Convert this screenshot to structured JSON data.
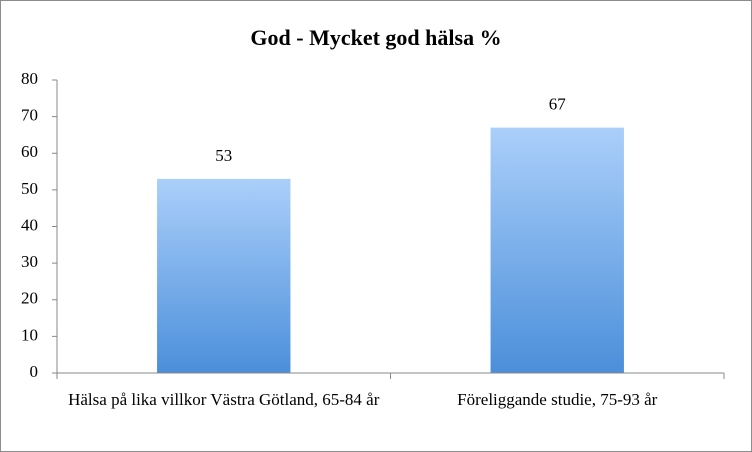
{
  "chart_data": {
    "type": "bar",
    "title": "God - Mycket god hälsa %",
    "categories": [
      "Hälsa på lika villkor Västra Götland, 65-84 år",
      "Föreliggande studie, 75-93 år"
    ],
    "values": [
      53,
      67
    ],
    "gradient": [
      "#abcffa",
      "#4b8fda"
    ],
    "ylim": [
      0,
      80
    ],
    "yticks": [
      0,
      10,
      20,
      30,
      40,
      50,
      60,
      70,
      80
    ],
    "grid": false,
    "data_labels": true
  }
}
